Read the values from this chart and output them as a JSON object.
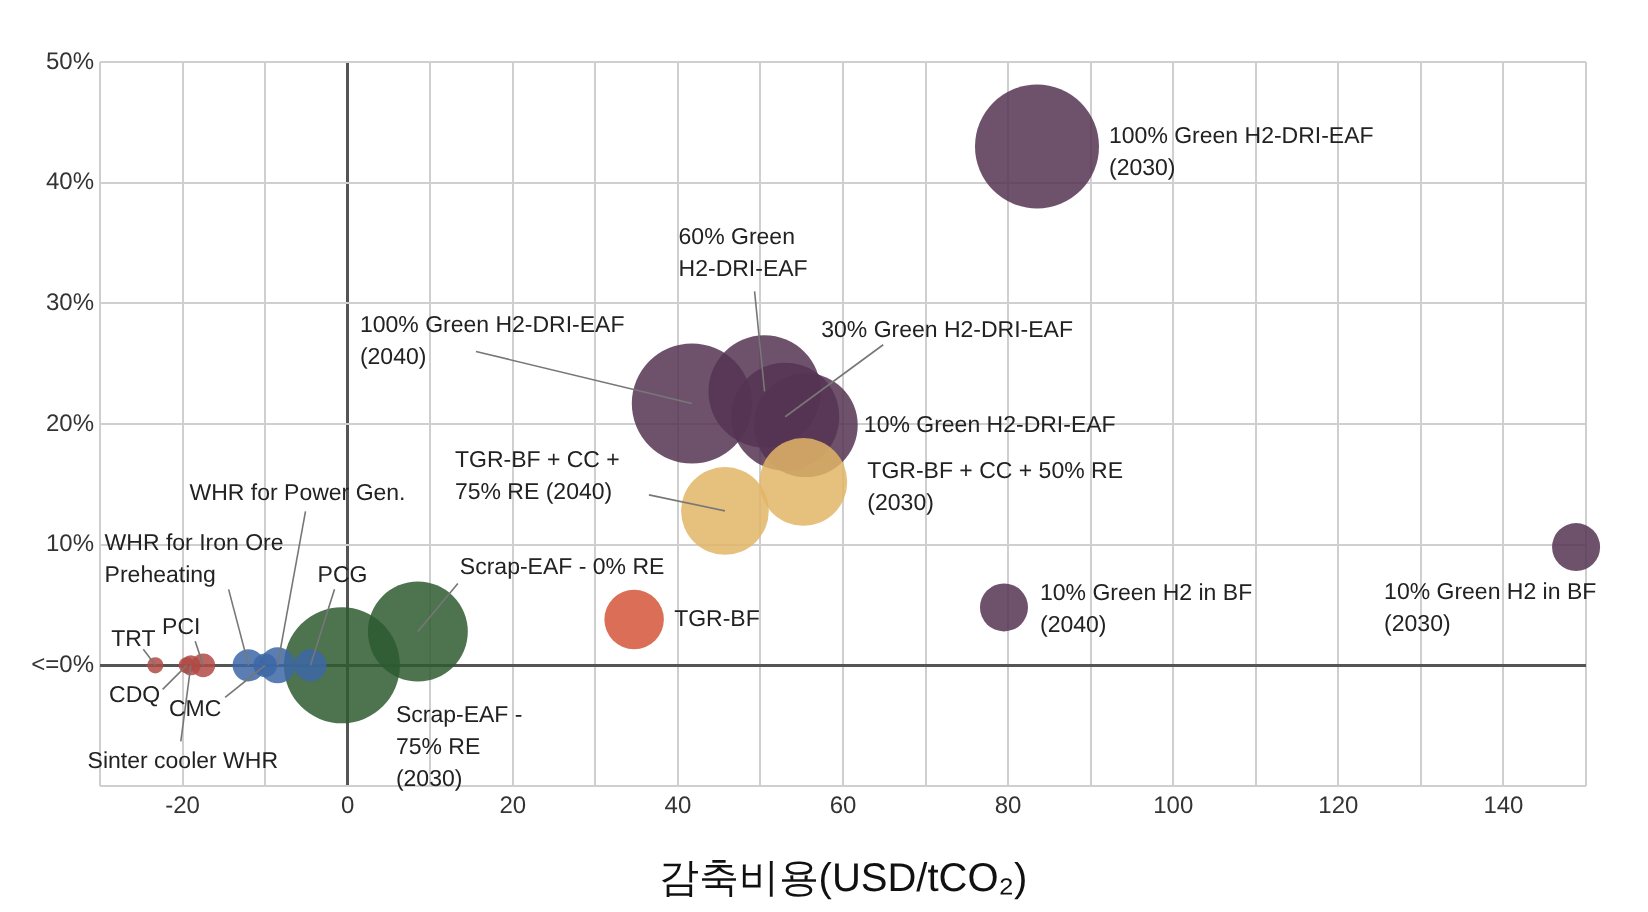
{
  "chart_data": {
    "type": "bubble",
    "xlabel": "감축비용(USD/tCO₂)",
    "xlim": [
      -30,
      150
    ],
    "xticks": [
      {
        "value": -30,
        "label": null
      },
      -20,
      {
        "value": -10,
        "label": null
      },
      0,
      {
        "value": 10,
        "label": null
      },
      20,
      {
        "value": 30,
        "label": null
      },
      40,
      {
        "value": 50,
        "label": null
      },
      60,
      {
        "value": 70,
        "label": null
      },
      80,
      {
        "value": 90,
        "label": null
      },
      100,
      {
        "value": 110,
        "label": null
      },
      120,
      {
        "value": 130,
        "label": null
      },
      140,
      {
        "value": 150,
        "label": null
      }
    ],
    "ylim": [
      -10,
      50
    ],
    "yticks": [
      {
        "value": -10,
        "label": null
      },
      {
        "value": 0,
        "label": "<=0%"
      },
      {
        "value": 10,
        "label": "10%"
      },
      {
        "value": 20,
        "label": "20%"
      },
      {
        "value": 30,
        "label": "30%"
      },
      {
        "value": 40,
        "label": "40%"
      },
      {
        "value": 50,
        "label": "50%"
      }
    ],
    "grid": true,
    "legend": false,
    "series": [
      {
        "name": "TRT",
        "color": "#b04a45",
        "x": [
          -23.3
        ],
        "values": [
          0
        ],
        "sizes": [
          0.017
        ]
      },
      {
        "name": "CDQ",
        "color": "#b04a45",
        "x": [
          -19.5
        ],
        "values": [
          0
        ],
        "sizes": [
          0.017
        ]
      },
      {
        "name": "Sinter cooler WHR",
        "color": "#b04a45",
        "x": [
          -19
        ],
        "values": [
          0
        ],
        "sizes": [
          0.026
        ]
      },
      {
        "name": "PCI",
        "color": "#b04a45",
        "x": [
          -17.5
        ],
        "values": [
          0
        ],
        "sizes": [
          0.037
        ]
      },
      {
        "name": "WHR for Iron Ore Preheating",
        "color": "#3d67a6",
        "x": [
          -12
        ],
        "values": [
          0
        ],
        "sizes": [
          0.067
        ]
      },
      {
        "name": "CMC",
        "color": "#3d67a6",
        "x": [
          -10
        ],
        "values": [
          0
        ],
        "sizes": [
          0.037
        ]
      },
      {
        "name": "WHR for Power Gen.",
        "color": "#3d67a6",
        "x": [
          -8.5
        ],
        "values": [
          0
        ],
        "sizes": [
          0.084
        ]
      },
      {
        "name": "PCG",
        "color": "#3d67a6",
        "x": [
          -4.5
        ],
        "values": [
          0
        ],
        "sizes": [
          0.067
        ]
      },
      {
        "name": "Scrap-EAF - 75% RE (2030)",
        "color": "#2e5a30",
        "x": [
          -0.7
        ],
        "values": [
          0
        ],
        "sizes": [
          0.875
        ]
      },
      {
        "name": "Scrap-EAF - 0% RE",
        "color": "#2e5a30",
        "x": [
          8.5
        ],
        "values": [
          2.8
        ],
        "sizes": [
          0.65
        ]
      },
      {
        "name": "TGR-BF",
        "color": "#d4553a",
        "x": [
          34.7
        ],
        "values": [
          3.8
        ],
        "sizes": [
          0.23
        ]
      },
      {
        "name": "TGR-BF + CC + 75% RE (2040)",
        "color": "#e2b566",
        "x": [
          45.7
        ],
        "values": [
          12.8
        ],
        "sizes": [
          0.5
        ]
      },
      {
        "name": "TGR-BF + CC + 50% RE (2030)",
        "color": "#e2b566",
        "x": [
          55.2
        ],
        "values": [
          15.2
        ],
        "sizes": [
          0.5
        ]
      },
      {
        "name": "100% Green H2-DRI-EAF (2030)",
        "color": "#553452",
        "x": [
          83.5
        ],
        "values": [
          43
        ],
        "sizes": [
          1
        ]
      },
      {
        "name": "100% Green H2-DRI-EAF (2040)",
        "color": "#553452",
        "x": [
          41.7
        ],
        "values": [
          21.7
        ],
        "sizes": [
          0.94
        ]
      },
      {
        "name": "60% Green H2-DRI-EAF",
        "color": "#553452",
        "x": [
          50.5
        ],
        "values": [
          22.7
        ],
        "sizes": [
          0.82
        ]
      },
      {
        "name": "30% Green H2-DRI-EAF",
        "color": "#553452",
        "x": [
          53
        ],
        "values": [
          20.6
        ],
        "sizes": [
          0.76
        ]
      },
      {
        "name": "10% Green H2-DRI-EAF",
        "color": "#553452",
        "x": [
          55.5
        ],
        "values": [
          19.9
        ],
        "sizes": [
          0.7
        ]
      },
      {
        "name": "10% Green H2 in BF (2040)",
        "color": "#553452",
        "x": [
          79.5
        ],
        "values": [
          4.8
        ],
        "sizes": [
          0.15
        ]
      },
      {
        "name": "10% Green H2 in BF (2030)",
        "color": "#553452",
        "x": [
          148.8
        ],
        "values": [
          9.8
        ],
        "sizes": [
          0.15
        ]
      }
    ]
  }
}
